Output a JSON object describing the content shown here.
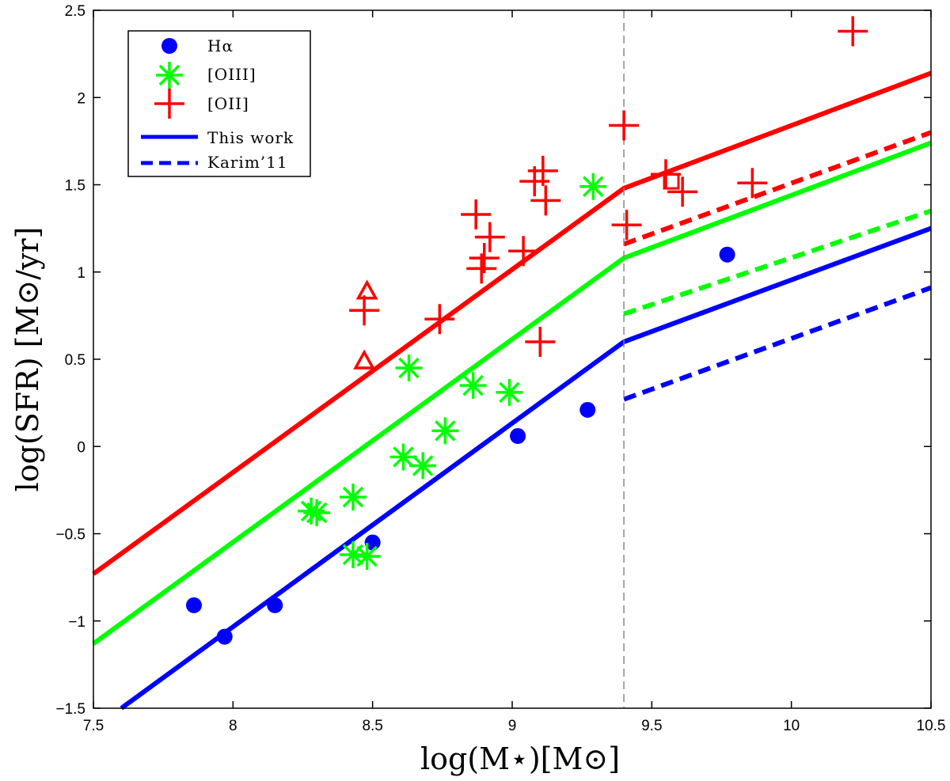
{
  "chart_data": {
    "type": "scatter",
    "xlabel": "log(M⋆)[M⊙]",
    "ylabel": "log(SFR) [M⊙/yr]",
    "xlim": [
      7.5,
      10.5
    ],
    "ylim": [
      -1.5,
      2.5
    ],
    "xticks": [
      7.5,
      8,
      8.5,
      9,
      9.5,
      10,
      10.5
    ],
    "xtick_labels": [
      "7.5",
      "8",
      "8.5",
      "9",
      "9.5",
      "10",
      "10.5"
    ],
    "yticks": [
      -1.5,
      -1,
      -0.5,
      0,
      0.5,
      1,
      1.5,
      2,
      2.5
    ],
    "ytick_labels": [
      "−1.5",
      "−1",
      "−0.5",
      "0",
      "0.5",
      "1",
      "1.5",
      "2",
      "2.5"
    ],
    "grid": false,
    "legend_position": "top-left",
    "vertical_line": {
      "x": 9.4,
      "style": "dashed",
      "color": "#888888"
    },
    "legend": [
      {
        "label": "Hα",
        "kind": "circle",
        "color": "#0000ff"
      },
      {
        "label": "[OIII]",
        "kind": "asterisk",
        "color": "#00ff00"
      },
      {
        "label": "[OII]",
        "kind": "plus",
        "color": "#ff0000"
      },
      {
        "label": "This work",
        "kind": "solid-line",
        "color": "#0000ff"
      },
      {
        "label": "Karim’11",
        "kind": "dashed-line",
        "color": "#0000ff"
      }
    ],
    "lines": [
      {
        "group": "OII",
        "style": "solid",
        "color": "#ff0000",
        "x": [
          7.5,
          9.4,
          10.5
        ],
        "y": [
          -0.73,
          1.48,
          2.14
        ]
      },
      {
        "group": "OIII",
        "style": "solid",
        "color": "#00ff00",
        "x": [
          7.5,
          9.4,
          10.5
        ],
        "y": [
          -1.13,
          1.08,
          1.74
        ]
      },
      {
        "group": "Halpha",
        "style": "solid",
        "color": "#0000ff",
        "x": [
          7.6,
          9.4,
          10.5
        ],
        "y": [
          -1.5,
          0.6,
          1.25
        ]
      },
      {
        "group": "OII",
        "style": "dashed",
        "color": "#ff0000",
        "x": [
          9.4,
          10.5
        ],
        "y": [
          1.16,
          1.8
        ]
      },
      {
        "group": "OIII",
        "style": "dashed",
        "color": "#00ff00",
        "x": [
          9.4,
          10.5
        ],
        "y": [
          0.76,
          1.35
        ]
      },
      {
        "group": "Halpha",
        "style": "dashed",
        "color": "#0000ff",
        "x": [
          9.4,
          10.5
        ],
        "y": [
          0.27,
          0.91
        ]
      }
    ],
    "series": [
      {
        "name": "Hα",
        "marker": "circle",
        "color": "#0000ff",
        "points": [
          [
            7.86,
            -0.91
          ],
          [
            7.97,
            -1.09
          ],
          [
            8.15,
            -0.91
          ],
          [
            8.5,
            -0.55
          ],
          [
            9.02,
            0.06
          ],
          [
            9.27,
            0.21
          ],
          [
            9.77,
            1.1
          ]
        ]
      },
      {
        "name": "[OIII]",
        "marker": "asterisk",
        "color": "#00ff00",
        "points": [
          [
            8.28,
            -0.37
          ],
          [
            8.3,
            -0.38
          ],
          [
            8.43,
            -0.29
          ],
          [
            8.43,
            -0.62
          ],
          [
            8.48,
            -0.63
          ],
          [
            8.61,
            -0.06
          ],
          [
            8.63,
            0.45
          ],
          [
            8.68,
            -0.11
          ],
          [
            8.76,
            0.09
          ],
          [
            8.86,
            0.35
          ],
          [
            8.99,
            0.31
          ],
          [
            9.29,
            1.49
          ]
        ]
      },
      {
        "name": "[OII]",
        "marker": "plus",
        "color": "#ff0000",
        "points": [
          [
            8.47,
            0.78
          ],
          [
            8.74,
            0.73
          ],
          [
            8.87,
            1.33
          ],
          [
            8.89,
            1.02
          ],
          [
            8.9,
            1.08
          ],
          [
            8.92,
            1.2
          ],
          [
            9.04,
            1.12
          ],
          [
            9.08,
            1.52
          ],
          [
            9.11,
            1.58
          ],
          [
            9.12,
            1.41
          ],
          [
            9.1,
            0.6
          ],
          [
            9.4,
            1.84
          ],
          [
            9.41,
            1.27
          ],
          [
            9.55,
            1.56
          ],
          [
            9.61,
            1.46
          ],
          [
            9.86,
            1.51
          ],
          [
            10.22,
            2.38
          ]
        ]
      },
      {
        "marker": "triangle",
        "color": "#ff0000",
        "points": [
          [
            8.48,
            0.89
          ],
          [
            8.47,
            0.49
          ]
        ]
      },
      {
        "marker": "square",
        "color": "#ff0000",
        "points": [
          [
            9.57,
            1.52
          ]
        ]
      }
    ]
  }
}
